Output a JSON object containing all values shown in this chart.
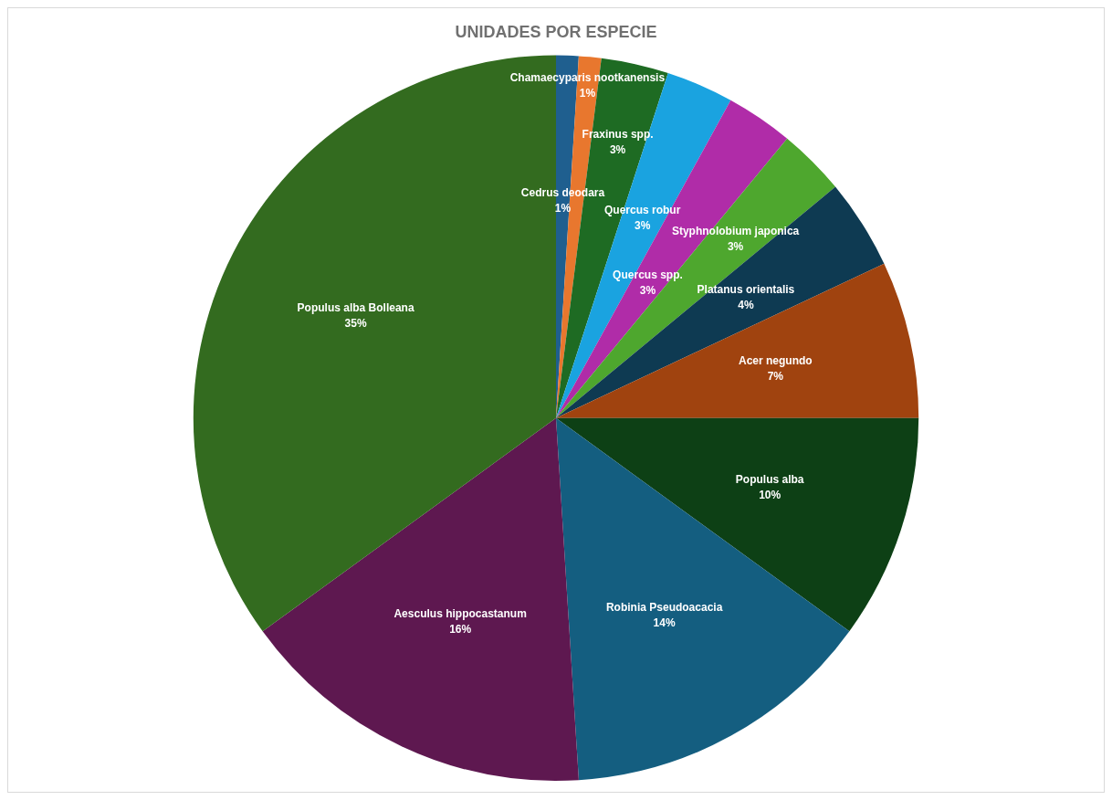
{
  "chart_data": {
    "type": "pie",
    "title": "UNIDADES POR ESPECIE",
    "categories": [
      "Cedrus deodara",
      "Chamaecyparis nootkanensis",
      "Fraxinus spp.",
      "Quercus robur",
      "Quercus spp.",
      "Styphnolobium japonica",
      "Platanus orientalis",
      "Acer negundo",
      "Populus alba",
      "Robinia Pseudoacacia",
      "Aesculus hippocastanum",
      "Populus alba Bolleana"
    ],
    "values": [
      1,
      1,
      3,
      3,
      3,
      3,
      4,
      7,
      10,
      14,
      16,
      35
    ],
    "value_labels": [
      "1%",
      "1%",
      "3%",
      "3%",
      "3%",
      "3%",
      "4%",
      "7%",
      "10%",
      "14%",
      "16%",
      "35%"
    ],
    "colors": [
      "#1f5f8f",
      "#e8772e",
      "#1e6b23",
      "#1aa3e0",
      "#b02ca8",
      "#4ea72e",
      "#0e3a52",
      "#a0430f",
      "#0d4015",
      "#145e80",
      "#5e1850",
      "#336b1f"
    ],
    "legend": false
  }
}
